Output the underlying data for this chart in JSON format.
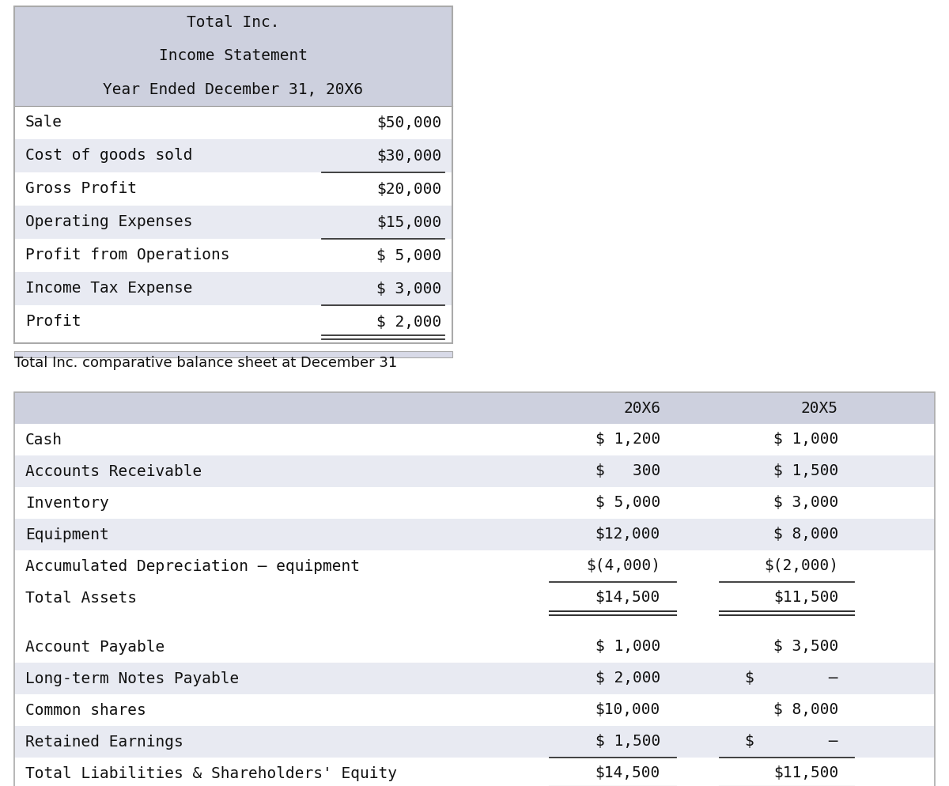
{
  "bg_color": "#ffffff",
  "header_bg": "#cdd0de",
  "row_alt_bg": "#e8eaf2",
  "row_white_bg": "#ffffff",
  "income_title_lines": [
    "Total Inc.",
    "Income Statement",
    "Year Ended December 31, 20X6"
  ],
  "income_rows": [
    {
      "label": "Sale",
      "value": "$50,000",
      "underline_below": false,
      "alt": false
    },
    {
      "label": "Cost of goods sold",
      "value": "$30,000",
      "underline_below": true,
      "alt": true
    },
    {
      "label": "Gross Profit",
      "value": "$20,000",
      "underline_below": false,
      "alt": false
    },
    {
      "label": "Operating Expenses",
      "value": "$15,000",
      "underline_below": true,
      "alt": true
    },
    {
      "label": "Profit from Operations",
      "value": "$ 5,000",
      "underline_below": false,
      "alt": false
    },
    {
      "label": "Income Tax Expense",
      "value": "$ 3,000",
      "underline_below": true,
      "alt": true
    },
    {
      "label": "Profit",
      "value": "$ 2,000",
      "underline_below": false,
      "alt": false
    }
  ],
  "balance_title": "Total Inc. comparative balance sheet at December 31",
  "balance_col_headers": [
    "20X6",
    "20X5"
  ],
  "balance_assets": [
    {
      "label": "Cash",
      "v6": "$ 1,200",
      "v5": "$ 1,000",
      "underline": false,
      "alt": false
    },
    {
      "label": "Accounts Receivable",
      "v6": "$   300",
      "v5": "$ 1,500",
      "underline": false,
      "alt": true
    },
    {
      "label": "Inventory",
      "v6": "$ 5,000",
      "v5": "$ 3,000",
      "underline": false,
      "alt": false
    },
    {
      "label": "Equipment",
      "v6": "$12,000",
      "v5": "$ 8,000",
      "underline": false,
      "alt": true
    },
    {
      "label": "Accumulated Depreciation – equipment",
      "v6": "$(4,000)",
      "v5": "$(2,000)",
      "underline": true,
      "alt": false
    },
    {
      "label": "Total Assets",
      "v6": "$14,500",
      "v5": "$11,500",
      "underline": false,
      "alt": false
    }
  ],
  "balance_liabilities": [
    {
      "label": "Account Payable",
      "v6": "$ 1,000",
      "v5": "$ 3,500",
      "underline": false,
      "alt": false
    },
    {
      "label": "Long-term Notes Payable",
      "v6": "$ 2,000",
      "v5": "$        –",
      "underline": false,
      "alt": true
    },
    {
      "label": "Common shares",
      "v6": "$10,000",
      "v5": "$ 8,000",
      "underline": false,
      "alt": false
    },
    {
      "label": "Retained Earnings",
      "v6": "$ 1,500",
      "v5": "$        –",
      "underline": true,
      "alt": true
    },
    {
      "label": "Total Liabilities & Shareholders' Equity",
      "v6": "$14,500",
      "v5": "$11,500",
      "underline": false,
      "alt": false
    }
  ],
  "font_size": 14,
  "title_font_size": 14,
  "balance_title_font_size": 13,
  "text_color": "#111111"
}
